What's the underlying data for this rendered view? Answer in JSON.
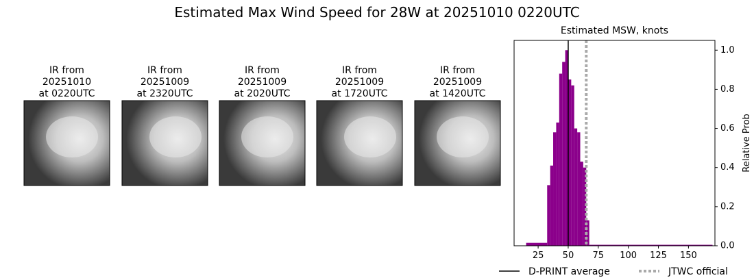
{
  "title": "Estimated Max Wind Speed for 28W at 20251010 0220UTC",
  "images": [
    {
      "label": [
        "IR from",
        "20251010",
        "at 0220UTC"
      ]
    },
    {
      "label": [
        "IR from",
        "20251009",
        "at 2320UTC"
      ]
    },
    {
      "label": [
        "IR from",
        "20251009",
        "at 2020UTC"
      ]
    },
    {
      "label": [
        "IR from",
        "20251009",
        "at 1720UTC"
      ]
    },
    {
      "label": [
        "IR from",
        "20251009",
        "at 1420UTC"
      ]
    }
  ],
  "chart_data": {
    "type": "histogram",
    "title": "Estimated MSW, knots",
    "y_label": "Relative Prob",
    "bins": [
      15,
      32.5,
      35,
      37.5,
      40,
      42.5,
      45,
      47.5,
      50,
      52.5,
      55,
      57.5,
      60,
      62.5,
      65,
      67.5,
      170
    ],
    "values": [
      0.015,
      0.31,
      0.41,
      0.58,
      0.63,
      0.88,
      0.94,
      1.0,
      0.85,
      0.82,
      0.6,
      0.58,
      0.43,
      0.4,
      0.13,
      0.005
    ],
    "color": "#8b008b",
    "xlim": [
      5,
      172
    ],
    "xticks": [
      25,
      50,
      75,
      100,
      125,
      150
    ],
    "ylim": [
      0,
      1.05
    ],
    "yticks": [
      {
        "value": 0,
        "label": "0.0"
      },
      {
        "value": 0.2,
        "label": "0.2"
      },
      {
        "value": 0.4,
        "label": "0.4"
      },
      {
        "value": 0.6,
        "label": "0.6"
      },
      {
        "value": 0.8,
        "label": "0.8"
      },
      {
        "value": 1,
        "label": "1.0"
      }
    ],
    "lines": [
      {
        "name": "D-PRINT average",
        "value": 50,
        "color": "#000000",
        "style": "solid"
      },
      {
        "name": "JTWC official",
        "value": 65,
        "color": "#aaaaaa",
        "style": "dotted"
      }
    ]
  }
}
